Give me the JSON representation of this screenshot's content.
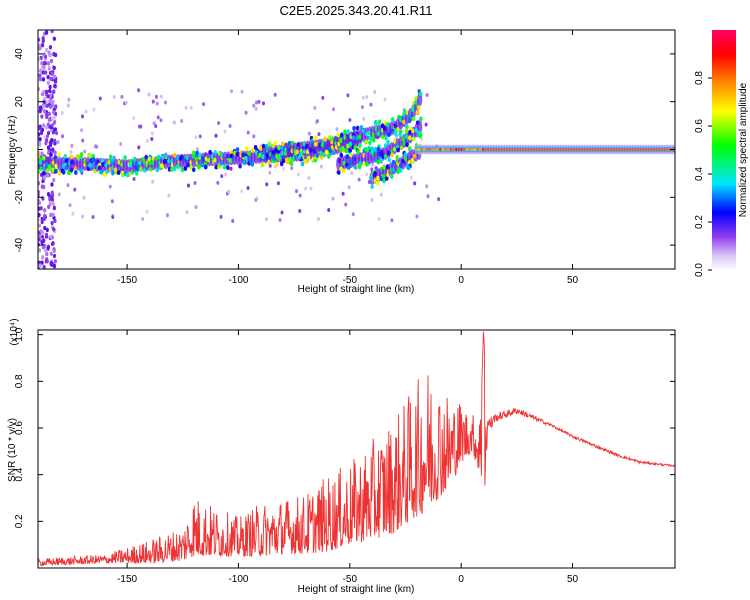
{
  "title": "C2E5.2025.343.20.41.R11",
  "colors": {
    "snr_line": "#ee3333",
    "ridge_core": "#ee2222",
    "background": "#ffffff"
  },
  "chart_data": [
    {
      "type": "heatmap",
      "name": "spectrogram",
      "xlabel": "Height of straight line (km)",
      "ylabel": "Frequency (Hz)",
      "xlim": [
        -190,
        96
      ],
      "ylim": [
        -50,
        50
      ],
      "xticks": [
        "-150",
        "-100",
        "-50",
        "0",
        "50"
      ],
      "yticks": [
        "-40",
        "-20",
        "0",
        "20",
        "40"
      ],
      "colorbar": {
        "label": "Normalized spectral amplitude",
        "range": [
          0,
          1
        ],
        "ticks": [
          "0.0",
          "0.2",
          "0.4",
          "0.6",
          "0.8"
        ],
        "colormap": [
          "#ffffff",
          "#b98cf0",
          "#6a00e0",
          "#0000ff",
          "#00e5ff",
          "#00ff00",
          "#ffff00",
          "#ff8800",
          "#ff0000",
          "#ff0066"
        ]
      },
      "ridges": [
        {
          "x": [
            -190,
            -170,
            -150,
            -130,
            -110,
            -90,
            -70,
            -55,
            -45
          ],
          "y": [
            -6,
            -6,
            -7,
            -5,
            -4,
            -3,
            -2,
            1,
            4
          ]
        },
        {
          "x": [
            -90,
            -75,
            -60,
            -48,
            -40,
            -30,
            -22,
            -18
          ],
          "y": [
            -2,
            0,
            2,
            5,
            7,
            9,
            15,
            22
          ]
        },
        {
          "x": [
            -55,
            -45,
            -35,
            -28,
            -22,
            -18
          ],
          "y": [
            -6,
            -4,
            -2,
            2,
            6,
            10
          ]
        },
        {
          "x": [
            -40,
            -33,
            -27,
            -22,
            -18
          ],
          "y": [
            -12,
            -9,
            -6,
            -3,
            -1
          ]
        },
        {
          "x": [
            -20,
            -10,
            0,
            10,
            30,
            60,
            96
          ],
          "y": [
            0,
            0,
            0,
            0,
            0,
            0,
            0
          ]
        }
      ]
    },
    {
      "type": "line",
      "name": "snr",
      "xlabel": "Height of straight line (km)",
      "ylabel": "SNR (10 * v/v)",
      "y_multiplier": "(x10⁴)",
      "xlim": [
        -190,
        96
      ],
      "ylim": [
        0,
        1.02
      ],
      "xticks": [
        "-150",
        "-100",
        "-50",
        "0",
        "50"
      ],
      "yticks": [
        "0.2",
        "0.4",
        "0.6",
        "0.8",
        "1.0"
      ],
      "envelope_x": [
        -190,
        -160,
        -140,
        -125,
        -120,
        -110,
        -100,
        -90,
        -80,
        -70,
        -60,
        -50,
        -40,
        -30,
        -20,
        -15,
        -10,
        -5,
        0,
        5,
        9,
        10,
        12,
        15,
        25,
        40,
        50,
        60,
        70,
        80,
        96
      ],
      "envelope_upper": [
        0.04,
        0.06,
        0.12,
        0.18,
        0.32,
        0.26,
        0.22,
        0.28,
        0.3,
        0.32,
        0.4,
        0.45,
        0.55,
        0.65,
        0.8,
        0.88,
        0.82,
        0.75,
        0.72,
        0.66,
        0.7,
        1.02,
        0.65,
        0.66,
        0.69,
        0.62,
        0.57,
        0.53,
        0.49,
        0.46,
        0.44
      ],
      "envelope_lower": [
        0.01,
        0.02,
        0.02,
        0.03,
        0.05,
        0.05,
        0.05,
        0.05,
        0.06,
        0.06,
        0.07,
        0.1,
        0.12,
        0.15,
        0.22,
        0.25,
        0.3,
        0.35,
        0.45,
        0.5,
        0.38,
        0.18,
        0.6,
        0.6,
        0.64,
        0.6,
        0.55,
        0.51,
        0.47,
        0.44,
        0.43
      ]
    }
  ]
}
